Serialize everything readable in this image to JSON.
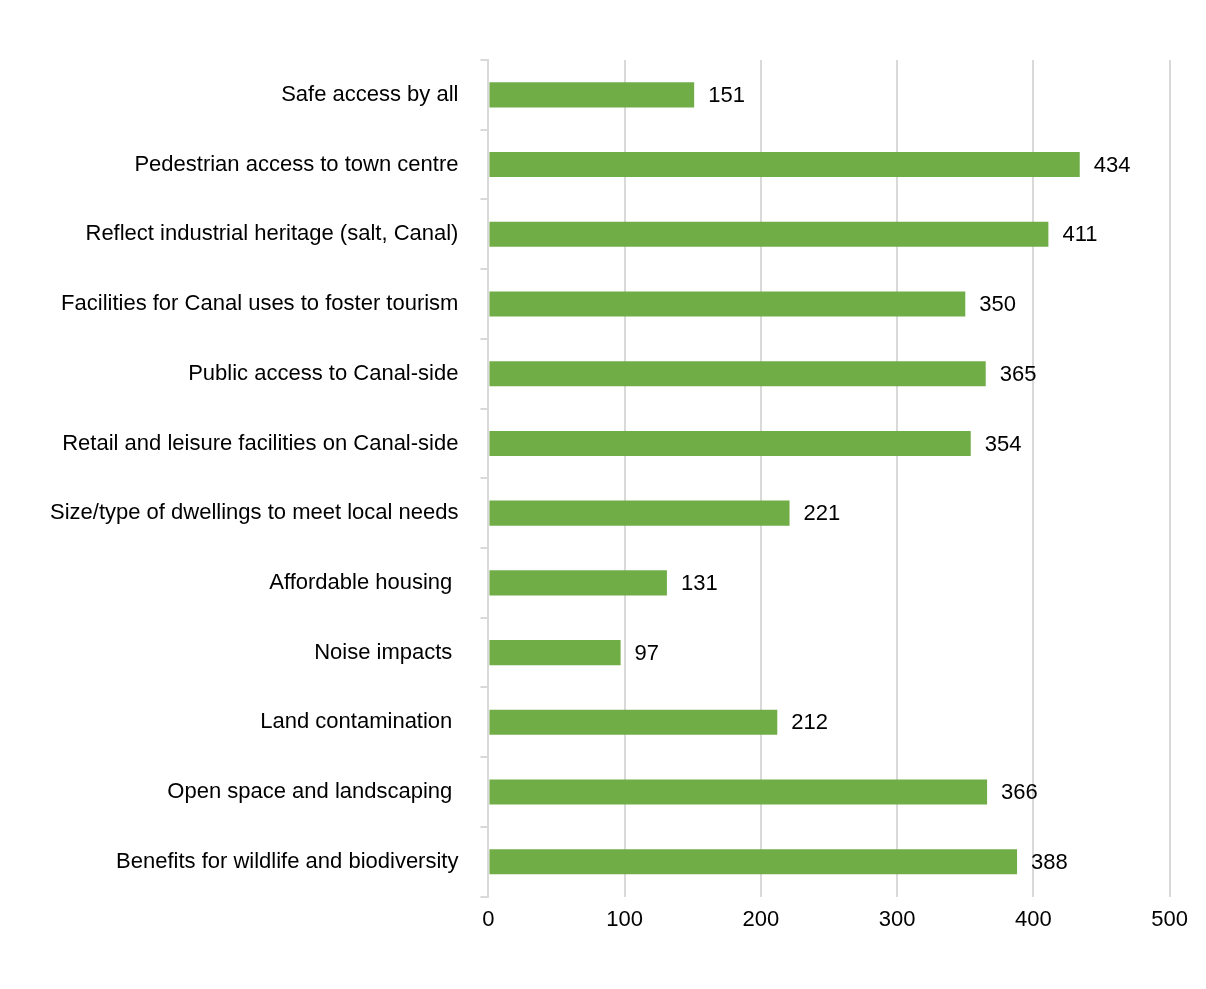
{
  "chart_data": {
    "type": "bar",
    "orientation": "horizontal",
    "categories": [
      "Safe access by all",
      "Pedestrian access to town centre",
      "Reflect industrial heritage (salt, Canal)",
      "Facilities for Canal uses to foster tourism",
      "Public access to Canal-side",
      "Retail and leisure facilities on Canal-side",
      "Size/type of dwellings to meet local needs",
      "Affordable housing ",
      "Noise impacts ",
      "Land contamination ",
      "Open space and landscaping ",
      "Benefits for wildlife and biodiversity"
    ],
    "values": [
      151,
      434,
      411,
      350,
      365,
      354,
      221,
      131,
      97,
      212,
      366,
      388
    ],
    "color": "#70ad47",
    "xlim": [
      0,
      500
    ],
    "xticks": [
      0,
      100,
      200,
      300,
      400,
      500
    ],
    "grid": "x",
    "data_labels": true,
    "legend": false
  }
}
